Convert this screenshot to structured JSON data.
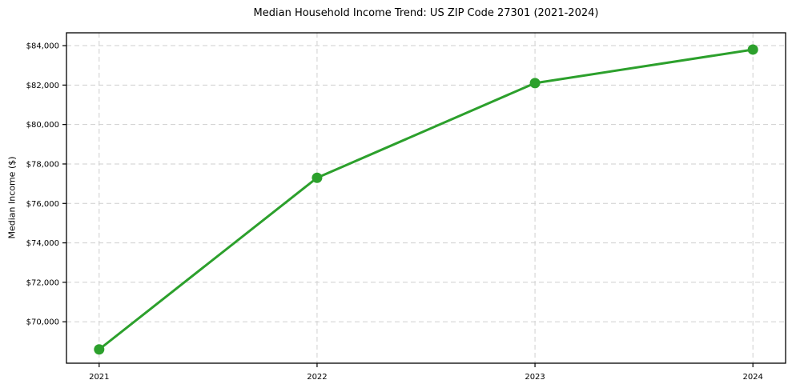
{
  "chart": {
    "title": "Median Household Income Trend: US ZIP Code 27301 (2021-2024)",
    "ylabel": "Median Income ($)"
  },
  "chart_data": {
    "type": "line",
    "title": "Median Household Income Trend: US ZIP Code 27301 (2021-2024)",
    "xlabel": "",
    "ylabel": "Median Income ($)",
    "x": [
      2021,
      2022,
      2023,
      2024
    ],
    "x_tick_labels": [
      "2021",
      "2022",
      "2023",
      "2024"
    ],
    "series": [
      {
        "name": "Median household income",
        "values": [
          68600,
          77300,
          82100,
          83800
        ]
      }
    ],
    "y_ticks": [
      70000,
      72000,
      74000,
      76000,
      78000,
      80000,
      82000,
      84000
    ],
    "y_tick_labels": [
      "$70,000",
      "$72,000",
      "$74,000",
      "$76,000",
      "$78,000",
      "$80,000",
      "$82,000",
      "$84,000"
    ],
    "xlim": [
      2020.85,
      2024.15
    ],
    "ylim": [
      67900,
      84650
    ],
    "grid": true,
    "grid_style": "dashed",
    "grid_color": "#cfcfcf",
    "legend": false,
    "legend_position": "none",
    "line_color": "#2ca02c",
    "marker": "circle",
    "marker_color": "#2ca02c",
    "background": "#ffffff",
    "spine_color": "#000000",
    "tick_label_color": "#000000"
  }
}
